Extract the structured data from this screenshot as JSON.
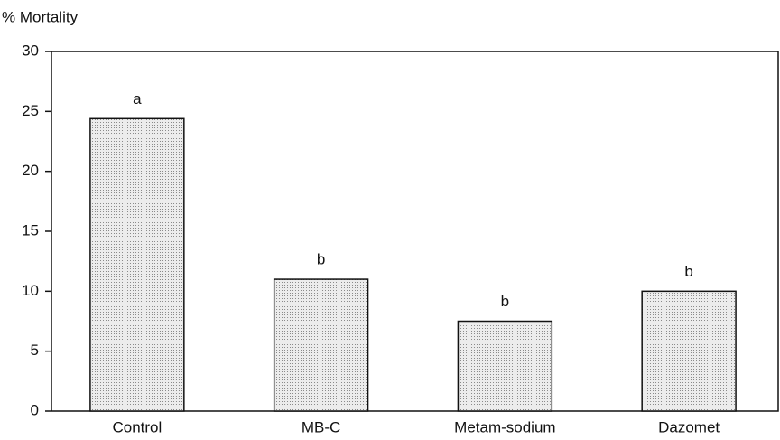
{
  "chart_data": {
    "type": "bar",
    "y_label": "% Mortality",
    "categories": [
      "Control",
      "MB-C",
      "Metam-sodium",
      "Dazomet"
    ],
    "values": [
      24.4,
      11,
      7.5,
      10
    ],
    "annotations": [
      "a",
      "b",
      "b",
      "b"
    ],
    "color": "#d9d9d9",
    "ylim": [
      0,
      30
    ],
    "yticks": [
      0,
      5,
      10,
      15,
      20,
      25,
      30
    ],
    "grid": false
  }
}
